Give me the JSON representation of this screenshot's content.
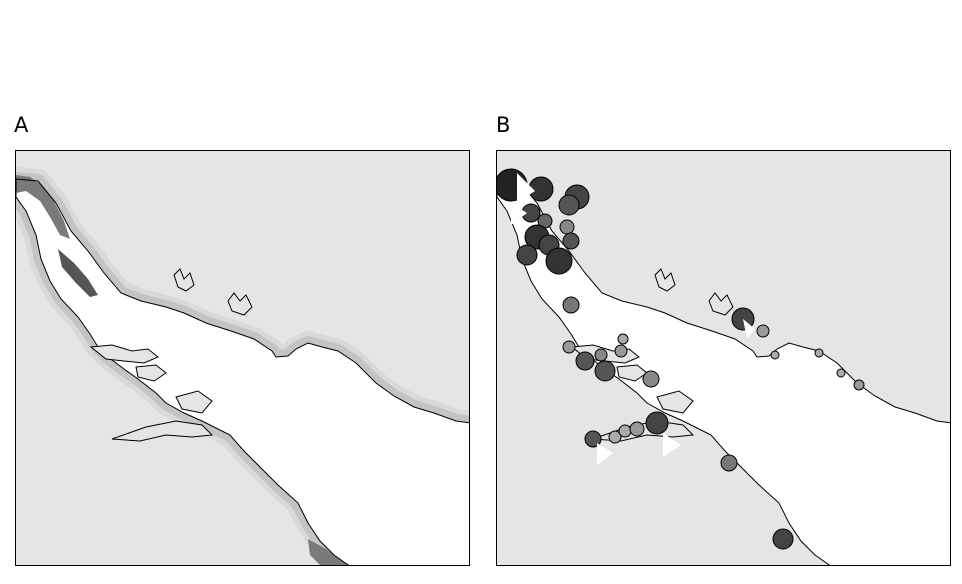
{
  "panels": {
    "a": {
      "label": "A"
    },
    "b": {
      "label": "B"
    }
  },
  "colors": {
    "land": "#e5e5e5",
    "water": "#ffffff",
    "coast": "#000000",
    "shade_light": "#d9d9d9",
    "shade_mid": "#a9a9a9",
    "shade_dark": "#5c5c5c",
    "point_dark": "#333333",
    "point_mid": "#6a6a6a",
    "point_light": "#a6a6a6"
  }
}
